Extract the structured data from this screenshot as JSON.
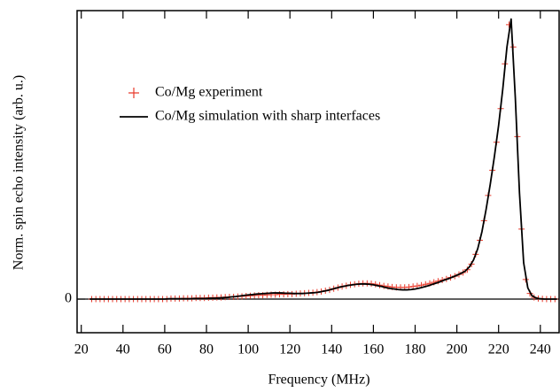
{
  "chart_data": {
    "type": "line",
    "xlabel": "Frequency (MHz)",
    "ylabel": "Norm. spin echo intensity (arb. u.)",
    "xlim": [
      18,
      249
    ],
    "ylim": [
      -0.12,
      1.03
    ],
    "xticks": [
      20,
      40,
      60,
      80,
      100,
      120,
      140,
      160,
      180,
      200,
      220,
      240
    ],
    "yticks": [
      0
    ],
    "zero_line": true,
    "legend": "upper left",
    "series": [
      {
        "name": "Co/Mg experiment",
        "color": "#e8392a",
        "marker": "+",
        "x": [
          25,
          27,
          29,
          31,
          33,
          35,
          37,
          39,
          41,
          43,
          45,
          47,
          49,
          51,
          53,
          55,
          57,
          59,
          61,
          63,
          65,
          67,
          69,
          71,
          73,
          75,
          77,
          79,
          81,
          83,
          85,
          87,
          89,
          91,
          93,
          95,
          97,
          99,
          101,
          103,
          105,
          107,
          109,
          111,
          113,
          115,
          117,
          119,
          121,
          123,
          125,
          127,
          129,
          131,
          133,
          135,
          137,
          139,
          141,
          143,
          145,
          147,
          149,
          151,
          153,
          155,
          157,
          159,
          161,
          163,
          165,
          167,
          169,
          171,
          173,
          175,
          177,
          179,
          181,
          183,
          185,
          187,
          189,
          191,
          193,
          195,
          197,
          199,
          201,
          203,
          205,
          207,
          209,
          211,
          213,
          215,
          217,
          219,
          221,
          223,
          225,
          227,
          229,
          231,
          233,
          235,
          237,
          239,
          241,
          243,
          245,
          247
        ],
        "values": [
          0,
          0,
          0,
          0,
          0,
          0,
          0,
          0,
          0,
          0,
          0,
          0,
          0,
          0,
          0,
          0,
          0,
          0,
          0,
          0.002,
          0.002,
          0.002,
          0.003,
          0.003,
          0.003,
          0.004,
          0.004,
          0.004,
          0.005,
          0.005,
          0.006,
          0.006,
          0.007,
          0.008,
          0.008,
          0.009,
          0.01,
          0.011,
          0.012,
          0.013,
          0.014,
          0.014,
          0.015,
          0.016,
          0.016,
          0.017,
          0.017,
          0.018,
          0.018,
          0.019,
          0.02,
          0.021,
          0.022,
          0.023,
          0.025,
          0.027,
          0.03,
          0.033,
          0.037,
          0.041,
          0.045,
          0.048,
          0.051,
          0.053,
          0.055,
          0.056,
          0.056,
          0.055,
          0.053,
          0.05,
          0.047,
          0.045,
          0.043,
          0.042,
          0.042,
          0.042,
          0.043,
          0.045,
          0.047,
          0.05,
          0.053,
          0.056,
          0.06,
          0.064,
          0.068,
          0.072,
          0.077,
          0.082,
          0.088,
          0.095,
          0.105,
          0.125,
          0.16,
          0.21,
          0.28,
          0.37,
          0.46,
          0.56,
          0.68,
          0.84,
          0.98,
          0.9,
          0.58,
          0.25,
          0.07,
          0.02,
          0.006,
          0.002,
          0.001,
          0,
          0,
          0
        ]
      },
      {
        "name": "Co/Mg simulation with sharp interfaces",
        "color": "#000000",
        "x": [
          24,
          26,
          28,
          30,
          32,
          34,
          36,
          38,
          40,
          42,
          44,
          46,
          48,
          50,
          52,
          54,
          56,
          58,
          60,
          62,
          64,
          66,
          68,
          70,
          72,
          74,
          76,
          78,
          80,
          82,
          84,
          86,
          88,
          90,
          92,
          94,
          96,
          98,
          100,
          102,
          104,
          106,
          108,
          110,
          112,
          114,
          116,
          118,
          120,
          122,
          124,
          126,
          128,
          130,
          132,
          134,
          136,
          138,
          140,
          142,
          144,
          146,
          148,
          150,
          152,
          154,
          156,
          158,
          160,
          162,
          164,
          166,
          168,
          170,
          172,
          174,
          176,
          178,
          180,
          182,
          184,
          186,
          188,
          190,
          192,
          194,
          196,
          198,
          200,
          202,
          204,
          206,
          208,
          210,
          212,
          214,
          216,
          218,
          220,
          222,
          224,
          226,
          228,
          230,
          232,
          234,
          236,
          238,
          240,
          242,
          244,
          246,
          248
        ],
        "values": [
          0,
          0,
          0,
          0,
          0,
          0,
          0,
          0,
          0,
          0,
          0,
          0,
          0,
          0,
          0,
          0,
          0,
          0,
          0,
          0.001,
          0.001,
          0.001,
          0.001,
          0.001,
          0.001,
          0.002,
          0.002,
          0.002,
          0.002,
          0.003,
          0.003,
          0.004,
          0.005,
          0.006,
          0.008,
          0.009,
          0.011,
          0.013,
          0.015,
          0.016,
          0.018,
          0.019,
          0.02,
          0.021,
          0.022,
          0.022,
          0.022,
          0.021,
          0.021,
          0.02,
          0.02,
          0.02,
          0.021,
          0.022,
          0.023,
          0.025,
          0.028,
          0.031,
          0.035,
          0.039,
          0.043,
          0.046,
          0.049,
          0.051,
          0.053,
          0.054,
          0.054,
          0.053,
          0.051,
          0.048,
          0.045,
          0.041,
          0.038,
          0.036,
          0.034,
          0.033,
          0.033,
          0.034,
          0.036,
          0.039,
          0.043,
          0.047,
          0.052,
          0.057,
          0.062,
          0.068,
          0.073,
          0.079,
          0.085,
          0.092,
          0.1,
          0.115,
          0.14,
          0.18,
          0.24,
          0.32,
          0.41,
          0.51,
          0.62,
          0.75,
          0.9,
          1.0,
          0.72,
          0.38,
          0.13,
          0.04,
          0.012,
          0.004,
          0.001,
          0,
          0,
          0,
          0
        ]
      }
    ]
  }
}
